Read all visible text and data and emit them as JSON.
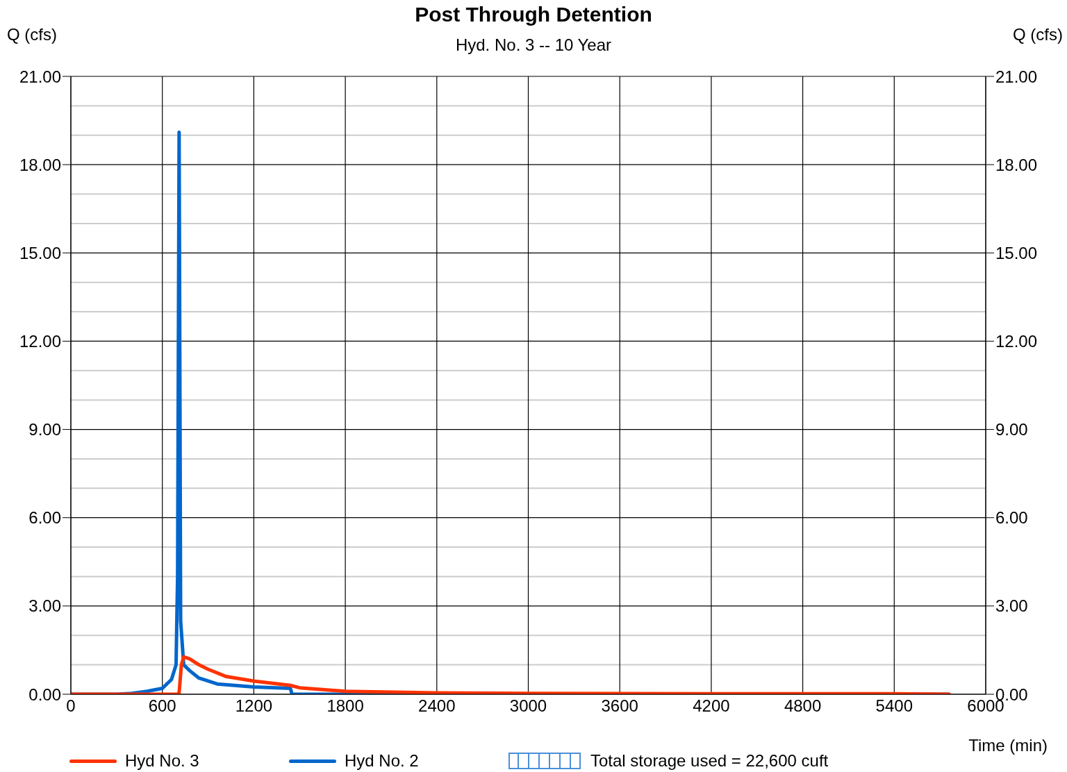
{
  "chart_data": {
    "type": "line",
    "title": "Post Through Detention",
    "subtitle": "Hyd. No. 3 -- 10 Year",
    "ylabel": "Q (cfs)",
    "y2label": "Q (cfs)",
    "xlabel": "Time (min)",
    "xlim": [
      0,
      6000
    ],
    "xticks": [
      0,
      600,
      1200,
      1800,
      2400,
      3000,
      3600,
      4200,
      4800,
      5400,
      6000
    ],
    "ylim": [
      0,
      21
    ],
    "yticks": [
      {
        "value": 0,
        "label": "0.00"
      },
      {
        "value": 1,
        "label": null
      },
      {
        "value": 2,
        "label": null
      },
      {
        "value": 3,
        "label": "3.00"
      },
      {
        "value": 4,
        "label": null
      },
      {
        "value": 5,
        "label": null
      },
      {
        "value": 6,
        "label": "6.00"
      },
      {
        "value": 7,
        "label": null
      },
      {
        "value": 8,
        "label": null
      },
      {
        "value": 9,
        "label": "9.00"
      },
      {
        "value": 10,
        "label": null
      },
      {
        "value": 11,
        "label": null
      },
      {
        "value": 12,
        "label": "12.00"
      },
      {
        "value": 13,
        "label": null
      },
      {
        "value": 14,
        "label": null
      },
      {
        "value": 15,
        "label": "15.00"
      },
      {
        "value": 16,
        "label": null
      },
      {
        "value": 17,
        "label": null
      },
      {
        "value": 18,
        "label": "18.00"
      },
      {
        "value": 19,
        "label": null
      },
      {
        "value": 20,
        "label": null
      },
      {
        "value": 21,
        "label": "21.00"
      }
    ],
    "y2lim": [
      0,
      21
    ],
    "y2ticks": [
      {
        "value": 0,
        "label": "0.00"
      },
      {
        "value": 3,
        "label": "3.00"
      },
      {
        "value": 6,
        "label": "6.00"
      },
      {
        "value": 9,
        "label": "9.00"
      },
      {
        "value": 12,
        "label": "12.00"
      },
      {
        "value": 15,
        "label": "15.00"
      },
      {
        "value": 18,
        "label": "18.00"
      },
      {
        "value": 21,
        "label": "21.00"
      }
    ],
    "grid": true,
    "legend": "bottom",
    "marker": "none",
    "line_style": "solid",
    "annotations": [
      "Total storage used = 22,600 cuft"
    ],
    "series": [
      {
        "name": "Hyd No. 3",
        "color": "#ff3300",
        "x": [
          0,
          600,
          700,
          710,
          725,
          740,
          780,
          840,
          900,
          1020,
          1200,
          1440,
          1500,
          1800,
          2400,
          3000,
          4200,
          5400,
          5760
        ],
        "values": [
          0,
          0,
          0,
          0.05,
          1.0,
          1.27,
          1.2,
          1.0,
          0.85,
          0.6,
          0.45,
          0.3,
          0.22,
          0.1,
          0.05,
          0.03,
          0.02,
          0.02,
          0
        ]
      },
      {
        "name": "Hyd No. 2",
        "color": "#0066cc",
        "x": [
          0,
          300,
          400,
          500,
          600,
          660,
          690,
          700,
          710,
          720,
          740,
          780,
          840,
          960,
          1200,
          1440,
          1450,
          1800,
          5760
        ],
        "values": [
          0,
          0,
          0.03,
          0.1,
          0.2,
          0.5,
          1.0,
          4.0,
          19.1,
          2.5,
          1.0,
          0.8,
          0.55,
          0.35,
          0.25,
          0.2,
          0,
          0,
          0
        ]
      }
    ]
  }
}
